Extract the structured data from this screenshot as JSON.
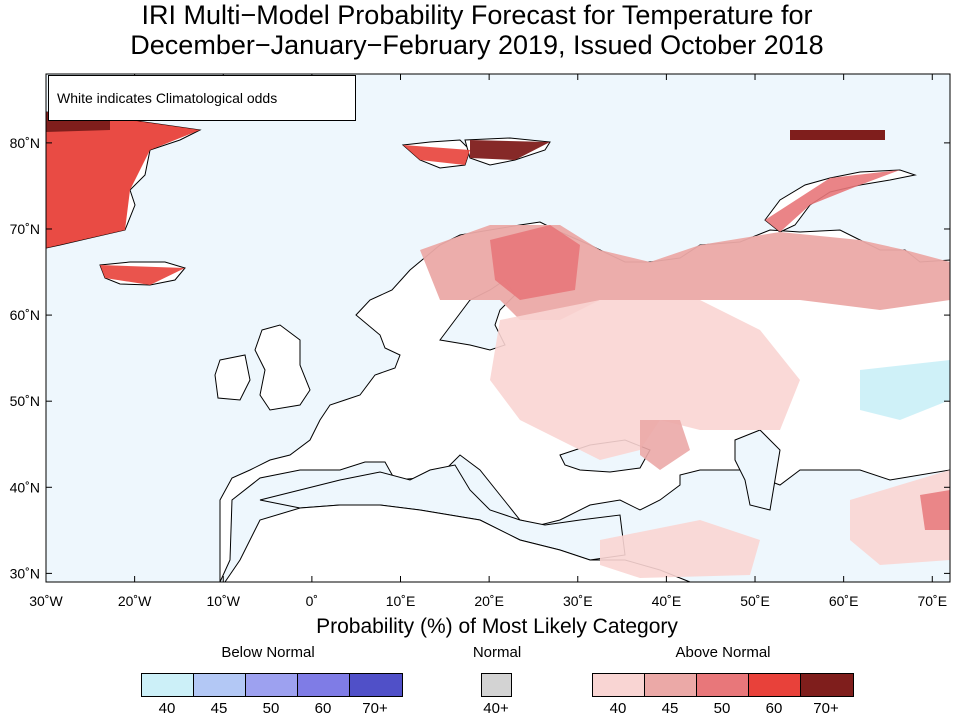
{
  "title": {
    "line1": "IRI Multi−Model Probability Forecast for Temperature for",
    "line2": "December−January−February 2019, Issued October 2018"
  },
  "map": {
    "note": "White indicates Climatological odds",
    "lat_labels": [
      "30˚N",
      "40˚N",
      "50˚N",
      "60˚N",
      "70˚N",
      "80˚N"
    ],
    "lon_labels": [
      "30˚W",
      "20˚W",
      "10˚W",
      "0˚",
      "10˚E",
      "20˚E",
      "30˚E",
      "40˚E",
      "50˚E",
      "60˚E",
      "70˚E"
    ],
    "extent": {
      "lon": [
        -30,
        72
      ],
      "lat": [
        29,
        88
      ]
    },
    "ocean_color": "#eef7fd",
    "land_color": "#ffffff"
  },
  "legend": {
    "title": "Probability (%) of Most Likely Category",
    "groups": [
      {
        "name": "Below Normal",
        "colors": [
          "#ccf0f8",
          "#b3c8f5",
          "#9da1f0",
          "#7f7ce6",
          "#5050c8"
        ],
        "labels": [
          "40",
          "45",
          "50",
          "60",
          "70+"
        ]
      },
      {
        "name": "Normal",
        "colors": [
          "#d3d3d3"
        ],
        "labels": [
          "40+"
        ]
      },
      {
        "name": "Above Normal",
        "colors": [
          "#f9d5d3",
          "#eba9a7",
          "#e8777a",
          "#e8413a",
          "#7f1e1c"
        ],
        "labels": [
          "40",
          "45",
          "50",
          "60",
          "70+"
        ]
      }
    ]
  }
}
